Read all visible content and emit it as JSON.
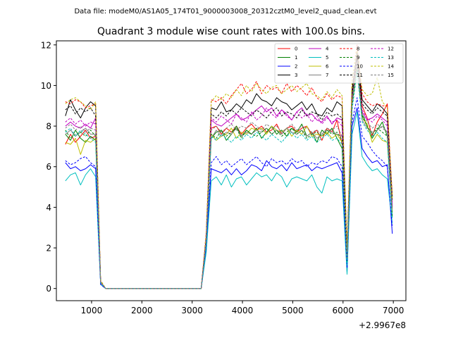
{
  "figure": {
    "suptitle": "Data file: modeM0/AS1A05_174T01_9000003008_20312cztM0_level2_quad_clean.evt"
  },
  "chart_data": {
    "type": "line",
    "title": "Quadrant 3 module wise count rates with 100.0s bins.",
    "xlabel": "",
    "ylabel": "",
    "x_offset_label": "+2.9967e8",
    "xlim": [
      300,
      7250
    ],
    "ylim": [
      -0.6,
      12.2
    ],
    "xticks": [
      1000,
      2000,
      3000,
      4000,
      5000,
      6000,
      7000
    ],
    "xtick_labels": [
      "1000",
      "2000",
      "3000",
      "4000",
      "5000",
      "6000",
      "7000"
    ],
    "yticks": [
      0,
      2,
      4,
      6,
      8,
      10,
      12
    ],
    "ytick_labels": [
      "0",
      "2",
      "4",
      "6",
      "8",
      "10",
      "12"
    ],
    "grid": false,
    "legend": {
      "placement": "top-right",
      "columns": 4
    },
    "x": [
      480,
      580,
      680,
      780,
      880,
      980,
      1080,
      1180,
      1280,
      3180,
      3280,
      3380,
      3480,
      3580,
      3680,
      3780,
      3880,
      3980,
      4080,
      4180,
      4280,
      4380,
      4480,
      4580,
      4680,
      4780,
      4880,
      4980,
      5080,
      5180,
      5280,
      5380,
      5480,
      5580,
      5680,
      5780,
      5880,
      5980,
      6080,
      6180,
      6280,
      6380,
      6480,
      6580,
      6680,
      6780,
      6880,
      6980
    ],
    "series": [
      {
        "name": "0",
        "color": "#ff0000",
        "dash": false,
        "values": [
          7.1,
          7.6,
          7.2,
          7.5,
          7.8,
          7.4,
          7.5,
          0.3,
          0.0,
          0.0,
          2.5,
          7.9,
          8.0,
          7.6,
          7.9,
          7.7,
          8.0,
          7.6,
          7.9,
          8.1,
          7.8,
          8.0,
          7.7,
          7.8,
          8.1,
          7.6,
          7.9,
          8.0,
          7.7,
          7.9,
          8.0,
          7.6,
          7.8,
          7.3,
          7.9,
          7.7,
          8.3,
          7.1,
          1.6,
          9.4,
          11.5,
          9.0,
          8.4,
          7.5,
          8.2,
          8.6,
          9.1,
          4.0
        ]
      },
      {
        "name": "1",
        "color": "#008000",
        "dash": false,
        "values": [
          7.6,
          7.3,
          7.8,
          7.4,
          7.2,
          7.5,
          7.3,
          0.3,
          0.0,
          0.0,
          2.3,
          7.4,
          7.7,
          7.8,
          7.3,
          7.6,
          8.0,
          7.5,
          7.8,
          7.6,
          7.9,
          7.4,
          7.7,
          8.0,
          7.6,
          7.8,
          7.5,
          7.9,
          7.7,
          8.1,
          7.5,
          7.7,
          7.2,
          7.8,
          7.6,
          7.9,
          7.4,
          6.9,
          1.3,
          9.5,
          11.0,
          8.6,
          8.0,
          7.4,
          7.8,
          8.2,
          7.5,
          3.5
        ]
      },
      {
        "name": "2",
        "color": "#0000ff",
        "dash": false,
        "values": [
          6.2,
          5.9,
          6.0,
          5.8,
          5.9,
          6.1,
          5.9,
          0.2,
          0.0,
          0.0,
          2.0,
          5.9,
          5.8,
          5.7,
          5.9,
          5.6,
          5.9,
          5.6,
          5.8,
          6.1,
          6.0,
          5.8,
          6.3,
          6.0,
          5.9,
          6.1,
          5.8,
          6.2,
          5.9,
          6.0,
          6.1,
          5.8,
          6.0,
          5.9,
          6.0,
          6.1,
          6.2,
          5.7,
          0.8,
          8.0,
          8.9,
          6.9,
          6.5,
          6.2,
          6.3,
          6.0,
          6.1,
          2.7
        ]
      },
      {
        "name": "3",
        "color": "#000000",
        "dash": false,
        "values": [
          8.5,
          9.3,
          8.8,
          8.4,
          8.9,
          9.2,
          9.0,
          0.3,
          0.0,
          0.0,
          2.6,
          8.9,
          8.8,
          9.2,
          8.7,
          8.8,
          9.1,
          8.9,
          9.3,
          9.1,
          9.6,
          9.3,
          9.2,
          9.0,
          9.4,
          9.2,
          9.1,
          8.8,
          9.0,
          9.2,
          8.8,
          9.1,
          8.6,
          8.5,
          8.9,
          8.7,
          9.2,
          9.0,
          1.8,
          9.8,
          11.6,
          9.3,
          9.0,
          8.7,
          9.1,
          8.9,
          8.6,
          4.5
        ]
      },
      {
        "name": "4",
        "color": "#bf00bf",
        "dash": false,
        "values": [
          8.0,
          8.2,
          8.0,
          7.9,
          8.1,
          7.9,
          8.4,
          0.3,
          0.0,
          0.0,
          2.5,
          8.3,
          8.1,
          8.0,
          8.2,
          8.4,
          8.6,
          8.3,
          8.4,
          8.6,
          8.8,
          9.0,
          8.7,
          8.9,
          8.5,
          8.8,
          8.6,
          8.3,
          8.7,
          8.9,
          8.5,
          8.6,
          8.3,
          8.2,
          8.5,
          8.1,
          8.4,
          8.3,
          1.4,
          9.3,
          10.8,
          8.7,
          8.3,
          8.4,
          8.6,
          8.4,
          8.2,
          4.1
        ]
      },
      {
        "name": "5",
        "color": "#00bfbf",
        "dash": false,
        "values": [
          5.3,
          5.6,
          5.7,
          5.1,
          5.6,
          5.9,
          5.5,
          0.2,
          0.0,
          0.0,
          1.8,
          5.3,
          5.5,
          5.1,
          5.6,
          5.0,
          5.4,
          5.5,
          5.1,
          5.4,
          5.7,
          5.5,
          5.6,
          5.3,
          5.7,
          5.5,
          5.0,
          5.4,
          5.5,
          5.4,
          5.3,
          5.6,
          5.0,
          4.7,
          5.5,
          5.3,
          5.4,
          5.3,
          0.7,
          7.6,
          8.7,
          6.5,
          6.1,
          5.8,
          5.9,
          5.6,
          5.4,
          3.2
        ]
      },
      {
        "name": "6",
        "color": "#bfbf00",
        "dash": false,
        "values": [
          7.2,
          7.1,
          7.4,
          6.6,
          7.3,
          7.2,
          7.4,
          0.3,
          0.0,
          0.0,
          2.4,
          7.6,
          7.3,
          7.5,
          7.6,
          7.9,
          7.4,
          7.7,
          7.6,
          7.9,
          7.8,
          7.9,
          7.6,
          8.0,
          7.8,
          7.7,
          7.9,
          7.5,
          7.8,
          7.6,
          8.0,
          7.5,
          7.6,
          7.5,
          7.7,
          7.4,
          7.6,
          7.2,
          1.4,
          9.1,
          10.9,
          8.4,
          8.1,
          7.2,
          7.6,
          7.3,
          7.2,
          3.8
        ]
      },
      {
        "name": "7",
        "color": "#808080",
        "dash": false,
        "values": [
          7.6,
          7.8,
          7.5,
          7.7,
          7.9,
          7.6,
          7.6,
          0.3,
          0.0,
          0.0,
          2.4,
          7.4,
          7.8,
          7.5,
          7.7,
          7.6,
          7.9,
          7.5,
          7.7,
          7.6,
          7.8,
          7.7,
          7.9,
          7.6,
          7.8,
          7.6,
          7.9,
          7.7,
          7.6,
          7.8,
          7.5,
          7.7,
          7.4,
          7.6,
          7.8,
          7.7,
          7.6,
          7.5,
          1.5,
          9.2,
          11.1,
          8.3,
          7.9,
          7.7,
          7.8,
          8.0,
          7.7,
          3.9
        ]
      },
      {
        "name": "8",
        "color": "#ff0000",
        "dash": true,
        "values": [
          9.2,
          9.1,
          9.3,
          9.2,
          8.9,
          9.0,
          9.1,
          0.4,
          0.0,
          0.0,
          2.8,
          9.3,
          9.2,
          9.4,
          9.1,
          9.5,
          9.8,
          10.1,
          9.6,
          9.8,
          10.2,
          9.6,
          10.0,
          9.8,
          9.9,
          9.6,
          10.1,
          9.7,
          10.0,
          9.8,
          9.5,
          9.9,
          9.4,
          9.2,
          9.6,
          9.3,
          9.5,
          9.4,
          2.0,
          10.2,
          12.0,
          9.6,
          9.2,
          9.0,
          9.1,
          9.0,
          9.0,
          4.6
        ]
      },
      {
        "name": "9",
        "color": "#008000",
        "dash": true,
        "values": [
          7.8,
          7.4,
          7.6,
          7.7,
          7.5,
          7.8,
          7.5,
          0.3,
          0.0,
          0.0,
          2.3,
          7.6,
          7.4,
          7.8,
          7.5,
          7.7,
          7.9,
          7.4,
          7.8,
          7.6,
          7.5,
          7.7,
          7.9,
          7.6,
          7.8,
          7.5,
          7.7,
          7.9,
          7.6,
          7.8,
          7.4,
          7.6,
          7.7,
          7.5,
          7.8,
          7.6,
          7.7,
          7.3,
          1.3,
          9.0,
          10.9,
          8.5,
          8.0,
          7.6,
          7.9,
          7.7,
          7.5,
          3.6
        ]
      },
      {
        "name": "10",
        "color": "#0000ff",
        "dash": true,
        "values": [
          6.3,
          6.1,
          6.2,
          6.4,
          6.5,
          6.2,
          6.0,
          0.2,
          0.0,
          0.0,
          2.1,
          6.2,
          6.5,
          6.1,
          6.3,
          6.0,
          6.2,
          6.4,
          6.1,
          6.3,
          6.5,
          6.2,
          6.0,
          6.4,
          6.2,
          6.3,
          6.1,
          6.4,
          6.2,
          6.3,
          6.0,
          6.2,
          6.1,
          6.3,
          6.2,
          6.5,
          6.4,
          6.0,
          1.0,
          8.2,
          9.4,
          7.5,
          7.2,
          6.8,
          6.5,
          6.3,
          6.0,
          3.0
        ]
      },
      {
        "name": "11",
        "color": "#000000",
        "dash": true,
        "values": [
          8.8,
          9.0,
          8.6,
          8.9,
          8.7,
          8.9,
          8.5,
          0.3,
          0.0,
          0.0,
          2.6,
          8.6,
          8.4,
          8.7,
          8.5,
          8.8,
          8.6,
          8.9,
          8.7,
          8.5,
          8.8,
          8.6,
          8.4,
          8.7,
          8.9,
          8.5,
          8.7,
          8.6,
          8.4,
          8.8,
          8.5,
          8.7,
          8.6,
          8.3,
          8.7,
          8.5,
          8.6,
          8.4,
          1.7,
          9.6,
          11.3,
          9.1,
          8.8,
          8.6,
          8.9,
          8.7,
          8.5,
          4.3
        ]
      },
      {
        "name": "12",
        "color": "#bf00bf",
        "dash": true,
        "values": [
          8.2,
          8.4,
          8.1,
          8.3,
          8.0,
          8.2,
          8.1,
          0.3,
          0.0,
          0.0,
          2.5,
          8.4,
          8.2,
          8.5,
          8.3,
          8.1,
          8.6,
          8.4,
          8.2,
          8.7,
          8.3,
          8.5,
          8.9,
          8.6,
          8.4,
          8.8,
          8.5,
          8.3,
          8.7,
          8.4,
          8.6,
          8.2,
          8.5,
          8.1,
          8.4,
          8.2,
          8.3,
          8.0,
          1.5,
          9.4,
          11.0,
          8.8,
          8.4,
          8.2,
          8.5,
          8.3,
          8.0,
          4.0
        ]
      },
      {
        "name": "13",
        "color": "#00bfbf",
        "dash": true,
        "values": [
          7.7,
          7.9,
          7.5,
          7.8,
          7.6,
          7.4,
          7.2,
          0.3,
          0.0,
          0.0,
          2.2,
          7.5,
          7.3,
          7.6,
          7.4,
          7.2,
          7.5,
          7.3,
          7.6,
          7.4,
          7.7,
          7.5,
          7.3,
          7.6,
          7.4,
          7.2,
          7.5,
          7.7,
          7.4,
          7.6,
          7.3,
          7.5,
          7.2,
          7.4,
          7.6,
          7.3,
          7.4,
          7.1,
          1.2,
          8.8,
          10.7,
          8.2,
          7.8,
          7.5,
          7.7,
          7.4,
          7.2,
          3.4
        ]
      },
      {
        "name": "14",
        "color": "#bfbf00",
        "dash": true,
        "values": [
          9.1,
          9.3,
          9.4,
          9.2,
          9.0,
          8.8,
          9.2,
          0.4,
          0.0,
          0.0,
          2.7,
          9.2,
          9.5,
          9.3,
          9.6,
          9.4,
          9.8,
          9.5,
          10.0,
          9.7,
          10.1,
          9.8,
          9.6,
          9.9,
          10.0,
          9.6,
          9.8,
          10.0,
          9.7,
          9.9,
          10.1,
          9.6,
          9.5,
          9.3,
          9.7,
          9.4,
          9.8,
          9.5,
          1.9,
          10.3,
          11.8,
          9.8,
          9.5,
          9.6,
          10.4,
          9.2,
          8.9,
          4.4
        ]
      },
      {
        "name": "15",
        "color": "#808080",
        "dash": true,
        "values": [
          7.9,
          8.1,
          7.8,
          8.0,
          7.7,
          7.9,
          7.8,
          0.3,
          0.0,
          0.0,
          2.4,
          7.8,
          8.0,
          7.7,
          7.9,
          8.1,
          7.8,
          8.0,
          7.9,
          8.2,
          8.0,
          7.8,
          8.1,
          7.9,
          8.0,
          7.7,
          7.9,
          8.1,
          7.8,
          8.0,
          7.9,
          7.7,
          7.8,
          7.6,
          7.9,
          7.8,
          8.0,
          7.5,
          1.5,
          9.2,
          11.0,
          8.6,
          8.2,
          7.9,
          8.1,
          7.9,
          7.7,
          3.8
        ]
      }
    ]
  }
}
